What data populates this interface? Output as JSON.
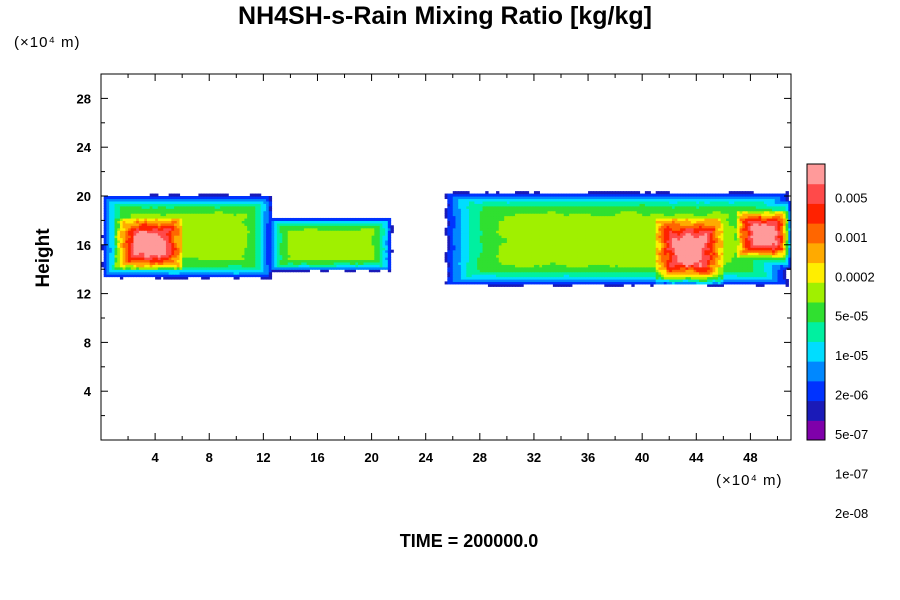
{
  "chart_data": {
    "type": "heatmap",
    "title": "NH4SH-s-Rain Mixing Ratio [kg/kg]",
    "xlabel": "",
    "ylabel": "Height",
    "x_unit": "(×10⁴ m)",
    "y_unit": "(×10⁴ m)",
    "xlim": [
      0,
      51
    ],
    "ylim": [
      0,
      30
    ],
    "x_ticks": [
      4,
      8,
      12,
      16,
      20,
      24,
      28,
      32,
      36,
      40,
      44,
      48
    ],
    "y_ticks": [
      4,
      8,
      12,
      16,
      20,
      24,
      28
    ],
    "colorbar": {
      "labels": [
        "0.005",
        "0.001",
        "0.0002",
        "5e-05",
        "1e-05",
        "2e-06",
        "5e-07",
        "1e-07",
        "2e-08"
      ],
      "colors": [
        "#7f00aa",
        "#1a1ab8",
        "#0033ff",
        "#0088ff",
        "#00ddff",
        "#00f0a0",
        "#30e030",
        "#a0f000",
        "#ffee00",
        "#ffaa00",
        "#ff6600",
        "#ff2200",
        "#ff4a4a",
        "#ff9a9a"
      ]
    },
    "regions": [
      {
        "x": [
          0,
          12.7
        ],
        "y": [
          13.2,
          20.2
        ],
        "core": [
          1,
          6,
          14,
          18.2
        ]
      },
      {
        "x": [
          12.3,
          21.6
        ],
        "y": [
          13.8,
          18.3
        ]
      },
      {
        "x": [
          25.2,
          51
        ],
        "y": [
          12.6,
          20.4
        ],
        "core": [
          41,
          46,
          12.8,
          18.2
        ]
      },
      {
        "x": [
          46.4,
          51
        ],
        "y": [
          14,
          19.8
        ],
        "core": [
          47,
          51,
          15,
          18.8
        ]
      }
    ],
    "footer": "TIME = 200000.0"
  }
}
